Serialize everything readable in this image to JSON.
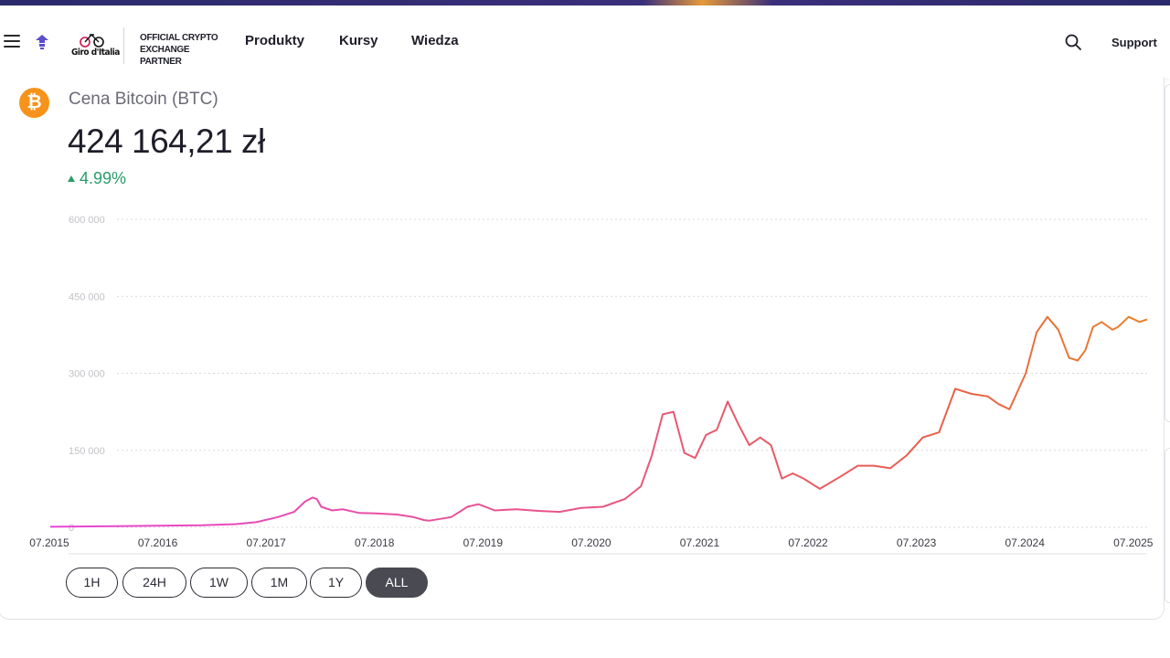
{
  "header": {
    "brand_logo": "giro-ditalia-logo",
    "brand_text": "Giro d'Italia",
    "partner_line1": "OFFICIAL CRYPTO",
    "partner_line2": "EXCHANGE PARTNER",
    "nav": [
      "Produkty",
      "Kursy",
      "Wiedza"
    ],
    "support_label": "Support"
  },
  "coin": {
    "title": "Cena Bitcoin (BTC)",
    "icon_symbol": "₿",
    "price": "424 164,21 zł",
    "change": "4.99%",
    "change_color": "#2a9b6a",
    "brand_color": "#f7931a"
  },
  "range_buttons": [
    "1H",
    "24H",
    "1W",
    "1M",
    "1Y",
    "ALL"
  ],
  "active_range": "ALL",
  "chart_data": {
    "type": "line",
    "title": "",
    "xlabel": "",
    "ylabel": "",
    "ylim": [
      0,
      600000
    ],
    "y_ticks": [
      "600 000",
      "450 000",
      "300 000",
      "150 000",
      "0"
    ],
    "y_tick_values": [
      600000,
      450000,
      300000,
      150000,
      0
    ],
    "x_ticks": [
      "07.2015",
      "07.2016",
      "07.2017",
      "07.2018",
      "07.2019",
      "07.2020",
      "07.2021",
      "07.2022",
      "07.2023",
      "07.2024",
      "07.2025"
    ],
    "x_tick_values": [
      2015.5,
      2016.5,
      2017.5,
      2018.5,
      2019.5,
      2020.5,
      2021.5,
      2022.5,
      2023.5,
      2024.5,
      2025.5
    ],
    "grid": true,
    "line_gradient": [
      "#e845d6",
      "#e8604a",
      "#e8832a"
    ],
    "series": [
      {
        "x": [
          2015.5,
          2016.0,
          2016.5,
          2016.9,
          2017.2,
          2017.4,
          2017.6,
          2017.75,
          2017.85,
          2017.92,
          2017.96,
          2018.0,
          2018.1,
          2018.2,
          2018.35,
          2018.5,
          2018.7,
          2018.85,
          2018.95,
          2019.0,
          2019.2,
          2019.35,
          2019.45,
          2019.6,
          2019.8,
          2020.0,
          2020.2,
          2020.4,
          2020.6,
          2020.8,
          2020.95,
          2021.05,
          2021.15,
          2021.25,
          2021.35,
          2021.45,
          2021.55,
          2021.65,
          2021.75,
          2021.85,
          2021.95,
          2022.05,
          2022.15,
          2022.25,
          2022.35,
          2022.45,
          2022.6,
          2022.8,
          2022.95,
          2023.1,
          2023.25,
          2023.4,
          2023.55,
          2023.7,
          2023.85,
          2024.0,
          2024.15,
          2024.25,
          2024.35,
          2024.5,
          2024.6,
          2024.7,
          2024.8,
          2024.9,
          2024.98,
          2025.05,
          2025.12,
          2025.2,
          2025.3,
          2025.35,
          2025.45,
          2025.55,
          2025.62
        ],
        "y": [
          1000,
          2000,
          3000,
          4000,
          6000,
          10000,
          20000,
          30000,
          50000,
          58000,
          55000,
          40000,
          33000,
          35000,
          28000,
          27000,
          25000,
          20000,
          14000,
          13000,
          20000,
          40000,
          45000,
          33000,
          35000,
          32000,
          30000,
          38000,
          40000,
          55000,
          80000,
          140000,
          220000,
          225000,
          145000,
          135000,
          180000,
          190000,
          245000,
          200000,
          160000,
          175000,
          160000,
          95000,
          105000,
          95000,
          75000,
          100000,
          120000,
          120000,
          115000,
          140000,
          175000,
          185000,
          270000,
          260000,
          255000,
          240000,
          230000,
          300000,
          380000,
          410000,
          385000,
          330000,
          325000,
          345000,
          390000,
          400000,
          385000,
          390000,
          410000,
          400000,
          405000
        ]
      }
    ]
  }
}
